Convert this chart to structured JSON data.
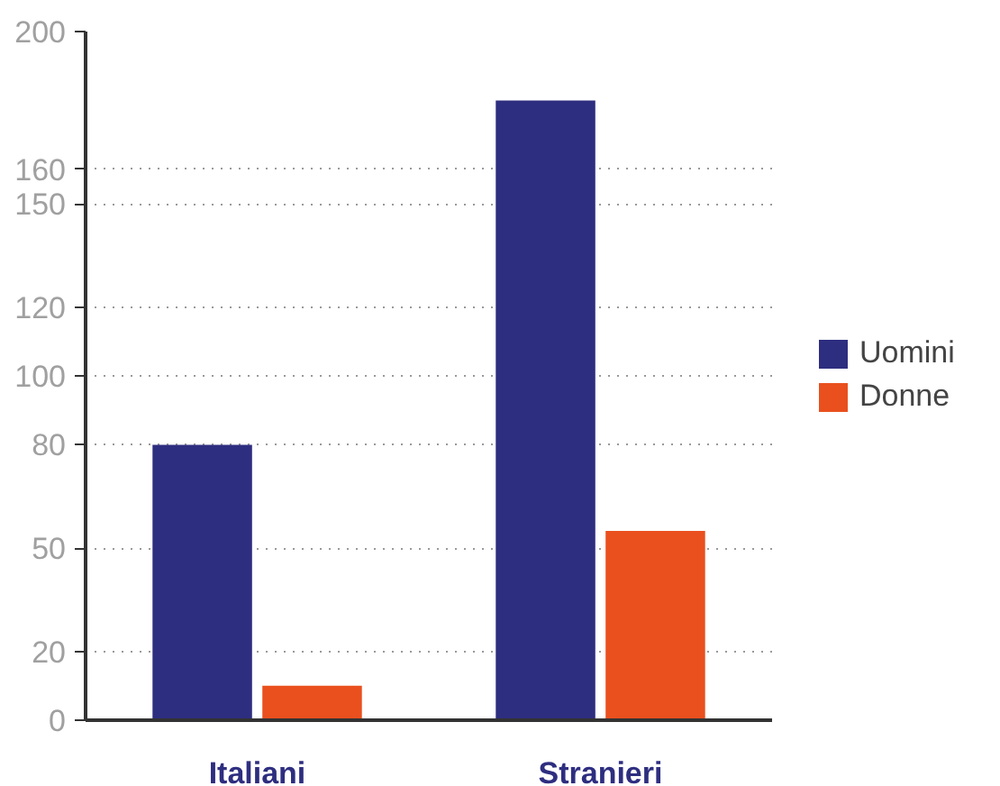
{
  "chart_data": {
    "type": "bar",
    "categories": [
      "Italiani",
      "Stranieri"
    ],
    "series": [
      {
        "name": "Uomini",
        "color": "#2e2e80",
        "values": [
          80,
          180
        ]
      },
      {
        "name": "Donne",
        "color": "#e9501e",
        "values": [
          10,
          55
        ]
      }
    ],
    "ylim": [
      0,
      200
    ],
    "yticks": [
      0,
      20,
      50,
      80,
      100,
      120,
      150,
      160,
      200
    ],
    "grid": "y",
    "legend": "right"
  }
}
